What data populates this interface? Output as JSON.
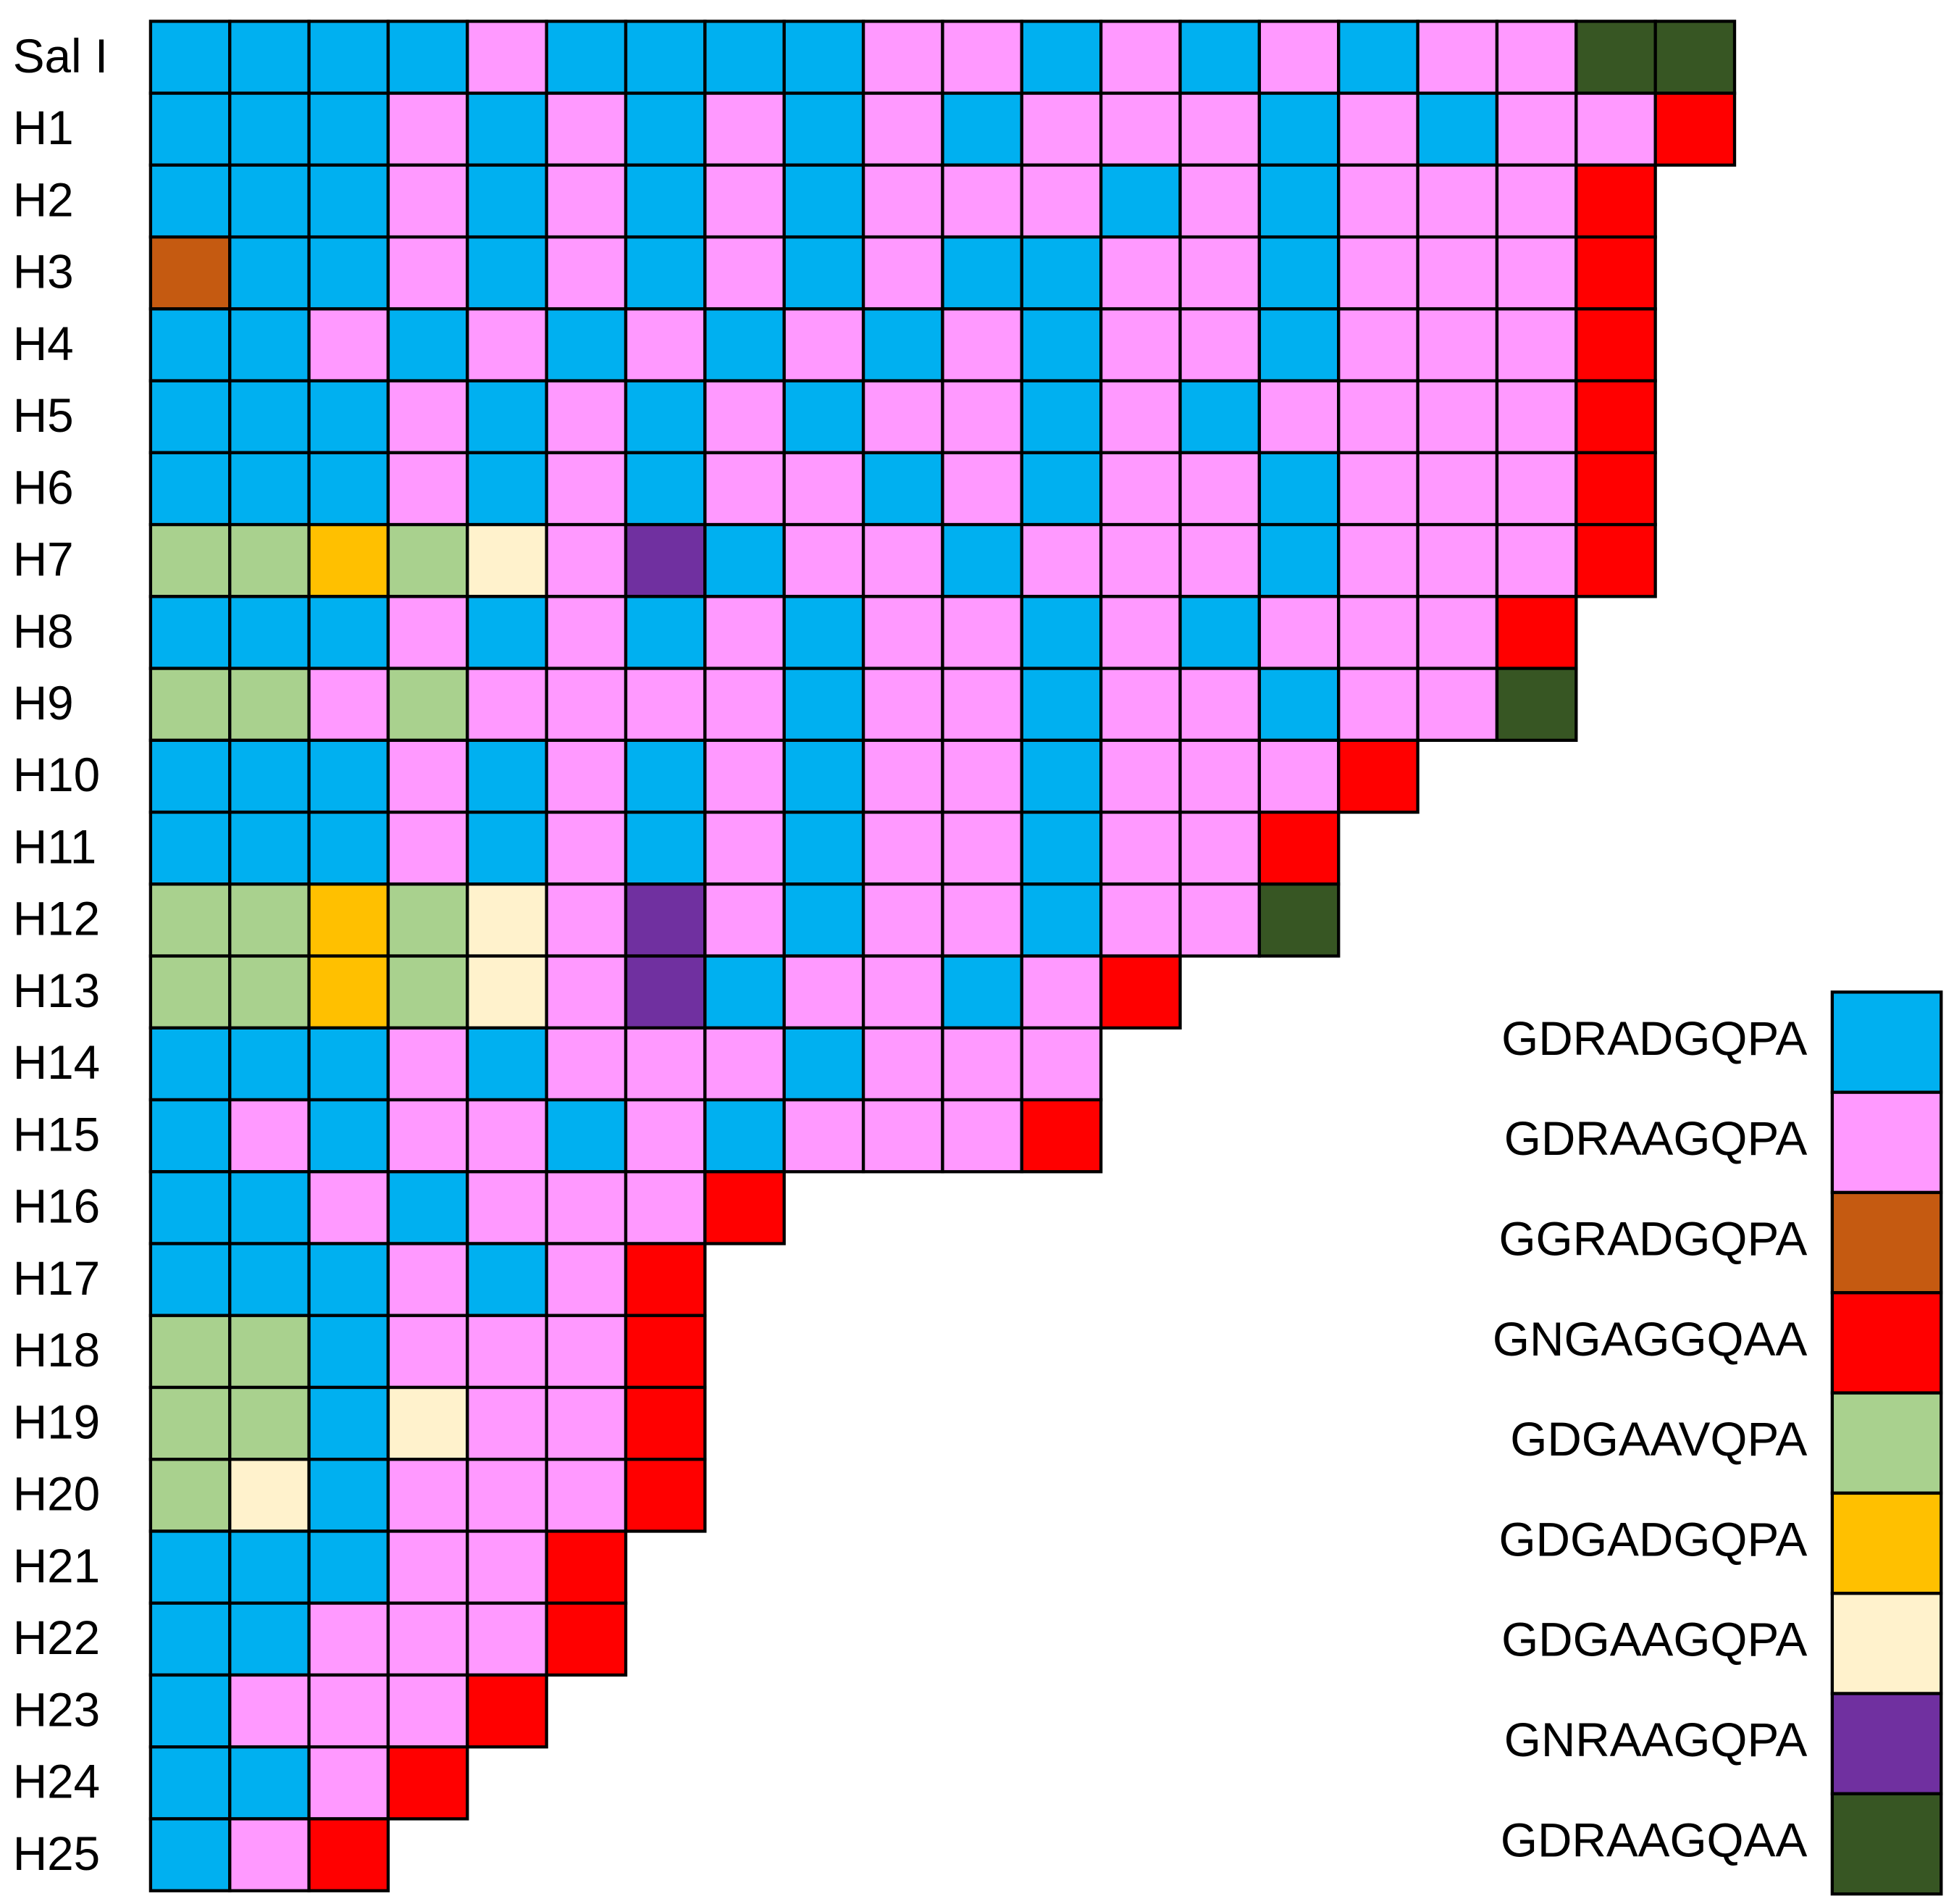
{
  "legend": [
    {
      "label": "GDRADGQPA",
      "color": "#00b0f0"
    },
    {
      "label": "GDRAAGQPA",
      "color": "#ff99ff"
    },
    {
      "label": "GGRADGQPA",
      "color": "#c55a11"
    },
    {
      "label": "GNGAGGQAA",
      "color": "#ff0000"
    },
    {
      "label": "GDGAAVQPA",
      "color": "#a9d18e"
    },
    {
      "label": "GDGADGQPA",
      "color": "#ffc000"
    },
    {
      "label": "GDGAAGQPA",
      "color": "#fff2cc"
    },
    {
      "label": "GNRAAGQPA",
      "color": "#7030a0"
    },
    {
      "label": "GDRAAGQAA",
      "color": "#375623"
    }
  ],
  "rows": [
    {
      "label": "Sal I",
      "cells": [
        0,
        0,
        0,
        0,
        1,
        0,
        0,
        0,
        0,
        1,
        1,
        0,
        1,
        0,
        1,
        0,
        1,
        1,
        8,
        8
      ]
    },
    {
      "label": "H1",
      "cells": [
        0,
        0,
        0,
        1,
        0,
        1,
        0,
        1,
        0,
        1,
        0,
        1,
        1,
        1,
        0,
        1,
        0,
        1,
        1,
        3
      ]
    },
    {
      "label": "H2",
      "cells": [
        0,
        0,
        0,
        1,
        0,
        1,
        0,
        1,
        0,
        1,
        1,
        1,
        0,
        1,
        0,
        1,
        1,
        1,
        3
      ]
    },
    {
      "label": "H3",
      "cells": [
        2,
        0,
        0,
        1,
        0,
        1,
        0,
        1,
        0,
        1,
        0,
        0,
        1,
        1,
        0,
        1,
        1,
        1,
        3
      ]
    },
    {
      "label": "H4",
      "cells": [
        0,
        0,
        1,
        0,
        1,
        0,
        1,
        0,
        1,
        0,
        1,
        0,
        1,
        1,
        0,
        1,
        1,
        1,
        3
      ]
    },
    {
      "label": "H5",
      "cells": [
        0,
        0,
        0,
        1,
        0,
        1,
        0,
        1,
        0,
        1,
        1,
        0,
        1,
        0,
        1,
        1,
        1,
        1,
        3
      ]
    },
    {
      "label": "H6",
      "cells": [
        0,
        0,
        0,
        1,
        0,
        1,
        0,
        1,
        1,
        0,
        1,
        0,
        1,
        1,
        0,
        1,
        1,
        1,
        3
      ]
    },
    {
      "label": "H7",
      "cells": [
        4,
        4,
        5,
        4,
        6,
        1,
        7,
        0,
        1,
        1,
        0,
        1,
        1,
        1,
        0,
        1,
        1,
        1,
        3
      ]
    },
    {
      "label": "H8",
      "cells": [
        0,
        0,
        0,
        1,
        0,
        1,
        0,
        1,
        0,
        1,
        1,
        0,
        1,
        0,
        1,
        1,
        1,
        3
      ]
    },
    {
      "label": "H9",
      "cells": [
        4,
        4,
        1,
        4,
        1,
        1,
        1,
        1,
        0,
        1,
        1,
        0,
        1,
        1,
        0,
        1,
        1,
        8
      ]
    },
    {
      "label": "H10",
      "cells": [
        0,
        0,
        0,
        1,
        0,
        1,
        0,
        1,
        0,
        1,
        1,
        0,
        1,
        1,
        1,
        3
      ]
    },
    {
      "label": "H11",
      "cells": [
        0,
        0,
        0,
        1,
        0,
        1,
        0,
        1,
        0,
        1,
        1,
        0,
        1,
        1,
        3
      ]
    },
    {
      "label": "H12",
      "cells": [
        4,
        4,
        5,
        4,
        6,
        1,
        7,
        1,
        0,
        1,
        1,
        0,
        1,
        1,
        8
      ]
    },
    {
      "label": "H13",
      "cells": [
        4,
        4,
        5,
        4,
        6,
        1,
        7,
        0,
        1,
        1,
        0,
        1,
        3
      ]
    },
    {
      "label": "H14",
      "cells": [
        0,
        0,
        0,
        1,
        0,
        1,
        1,
        1,
        0,
        1,
        1,
        1
      ]
    },
    {
      "label": "H15",
      "cells": [
        0,
        1,
        0,
        1,
        1,
        0,
        1,
        0,
        1,
        1,
        1,
        3
      ]
    },
    {
      "label": "H16",
      "cells": [
        0,
        0,
        1,
        0,
        1,
        1,
        1,
        3
      ]
    },
    {
      "label": "H17",
      "cells": [
        0,
        0,
        0,
        1,
        0,
        1,
        3
      ]
    },
    {
      "label": "H18",
      "cells": [
        4,
        4,
        0,
        1,
        1,
        1,
        3
      ]
    },
    {
      "label": "H19",
      "cells": [
        4,
        4,
        0,
        6,
        1,
        1,
        3
      ]
    },
    {
      "label": "H20",
      "cells": [
        4,
        6,
        0,
        1,
        1,
        1,
        3
      ]
    },
    {
      "label": "H21",
      "cells": [
        0,
        0,
        0,
        1,
        1,
        3
      ]
    },
    {
      "label": "H22",
      "cells": [
        0,
        0,
        1,
        1,
        1,
        3
      ]
    },
    {
      "label": "H23",
      "cells": [
        0,
        1,
        1,
        1,
        3
      ]
    },
    {
      "label": "H24",
      "cells": [
        0,
        0,
        1,
        3
      ]
    },
    {
      "label": "H25",
      "cells": [
        0,
        1,
        3
      ]
    }
  ]
}
